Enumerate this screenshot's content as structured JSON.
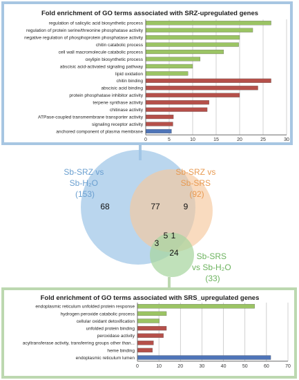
{
  "colors": {
    "top_frame": "#a7c6e2",
    "bottom_frame": "#bcd8b0",
    "bar_green": "#9bc464",
    "bar_red": "#b5504a",
    "bar_blue": "#4e74b8",
    "venn_srz_h2o": "#9fc6e8",
    "venn_srz_srs": "#f6c79d",
    "venn_srs_h2o": "#a8d59f",
    "label_blue": "#6a9fd0",
    "label_orange": "#e89a52",
    "label_green": "#6cb35e"
  },
  "venn": {
    "set_labels": [
      {
        "lines": [
          "Sb-SRZ vs",
          "Sb-H₂O",
          "(153)"
        ]
      },
      {
        "lines": [
          "Sb-SRZ vs",
          "Sb-SRS",
          "(92)"
        ]
      },
      {
        "lines": [
          "Sb-SRS",
          "vs Sb-H₂O",
          "(33)"
        ]
      }
    ],
    "counts": {
      "srz_h2o_only": "68",
      "srz_h2o_and_srz_srs": "77",
      "srz_srs_only": "9",
      "all_three": "5",
      "srz_srs_and_srs_h2o": "1",
      "srz_h2o_and_srs_h2o": "3",
      "srs_h2o_only": "24"
    }
  },
  "chart_data": [
    {
      "type": "bar",
      "orientation": "horizontal",
      "title": "Fold enrichment of GO terms associated with SRZ-upregulated genes",
      "xlim": [
        0,
        30
      ],
      "ticks": [
        0,
        5,
        10,
        15,
        20,
        25,
        30
      ],
      "grid": true,
      "categories": [
        "regulation of salicylic acid biosynthetic process",
        "regulation of protein serine/threonine phosphatase activity",
        "negative regulation of phosphoprotein phosphatase activity",
        "chitin catabolic process",
        "cell wall macromolecule catabolic process",
        "oxylipin biosynthetic process",
        "abscisic acid-activated signaling pathway",
        "lipid oxidation",
        "chitin binding",
        "abscisic acid binding",
        "protein phosphatase inhibitor activity",
        "terpene synthase activity",
        "chitinase activity",
        "ATPase-coupled transmembrane transporter activity",
        "signaling receptor activity",
        "anchored component of plasma membrane"
      ],
      "values": [
        26.7,
        22.8,
        20.0,
        19.8,
        16.6,
        11.6,
        10.0,
        9.0,
        26.7,
        23.9,
        20.0,
        13.5,
        13.1,
        5.9,
        5.8,
        5.5
      ],
      "bar_color_keys": [
        "bar_green",
        "bar_green",
        "bar_green",
        "bar_green",
        "bar_green",
        "bar_green",
        "bar_green",
        "bar_green",
        "bar_red",
        "bar_red",
        "bar_red",
        "bar_red",
        "bar_red",
        "bar_red",
        "bar_red",
        "bar_blue"
      ]
    },
    {
      "type": "bar",
      "orientation": "horizontal",
      "title": "Fold enrichment of GO terms associated with SRS_upregulated genes",
      "xlim": [
        0,
        70
      ],
      "ticks": [
        0,
        10,
        20,
        30,
        40,
        50,
        60,
        70
      ],
      "grid": true,
      "categories": [
        "endoplasmic reticulum unfolded protein response",
        "hydrogen peroxide catabolic process",
        "cellular oxidant detoxification",
        "unfolded protein binding",
        "peroxidase activity",
        "acyltransferase activity, transferring groups other than...",
        "heme binding",
        "endoplasmic reticulum lumen"
      ],
      "values": [
        54.5,
        13.5,
        10.2,
        13.5,
        12.1,
        7.5,
        7.0,
        62.0
      ],
      "bar_color_keys": [
        "bar_green",
        "bar_green",
        "bar_green",
        "bar_red",
        "bar_red",
        "bar_red",
        "bar_red",
        "bar_blue"
      ]
    }
  ]
}
